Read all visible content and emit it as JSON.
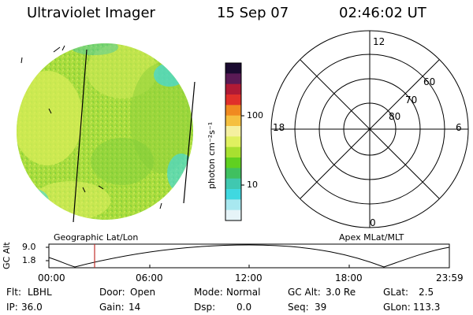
{
  "header": {
    "instrument": "Ultraviolet Imager",
    "date": "15 Sep 07",
    "time": "02:46:02 UT"
  },
  "colorbar": {
    "unit_label": "photon cm⁻²s⁻¹",
    "tick_labels": [
      "100",
      "10"
    ],
    "colors_top_to_bottom": [
      "#1a0a30",
      "#5a1a55",
      "#b01a35",
      "#e0302a",
      "#f08a20",
      "#f5c040",
      "#f5f0a0",
      "#e0f060",
      "#a8e030",
      "#60d020",
      "#40c060",
      "#40c8b0",
      "#40d8e0",
      "#a8e8f0",
      "#e6f4f8"
    ]
  },
  "polar_grid": {
    "mlt_labels": [
      "12",
      "18",
      "6",
      "0"
    ],
    "mlat_labels": [
      "60",
      "70",
      "80"
    ]
  },
  "image_labels": {
    "left": "Geographic Lat/Lon",
    "right": "Apex MLat/MLT"
  },
  "altitude_plot": {
    "ylabel": "GC Alt",
    "y_ticks": [
      "9.0",
      "1.8"
    ],
    "x_ticks": [
      "00:00",
      "06:00",
      "12:00",
      "18:00",
      "23:59"
    ],
    "cursor_time": "02:46"
  },
  "info": {
    "row1": [
      {
        "label": "Flt:",
        "value": "LBHL"
      },
      {
        "label": "Door:",
        "value": "Open"
      },
      {
        "label": "Mode:",
        "value": "Normal"
      },
      {
        "label": "GC Alt:",
        "value": "3.0 Re"
      },
      {
        "label": "GLat:",
        "value": "2.5"
      }
    ],
    "row2": [
      {
        "label": "IP:",
        "value": "36.0"
      },
      {
        "label": "Gain:",
        "value": "14"
      },
      {
        "label": "Dsp:",
        "value": "0.0"
      },
      {
        "label": "Seq:",
        "value": "39"
      },
      {
        "label": "GLon:",
        "value": "113.3"
      }
    ]
  },
  "colors": {
    "image_base": "#a8dc3c",
    "image_light": "#d4ec50",
    "cursor_line": "#c0302a"
  }
}
